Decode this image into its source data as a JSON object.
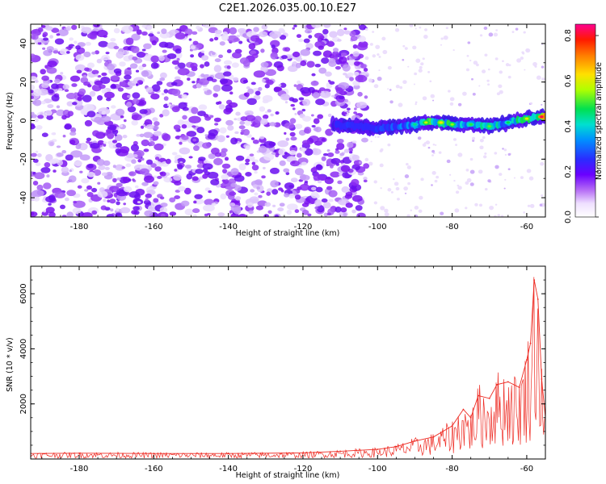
{
  "title": "C2E1.2026.035.00.10.E27",
  "chart_data": [
    {
      "type": "heatmap",
      "xlabel": "Height of straight line (km)",
      "ylabel": "Frequency (Hz)",
      "xlim": [
        -193,
        -55
      ],
      "ylim": [
        -50,
        50
      ],
      "xticks": [
        -180,
        -160,
        -140,
        -120,
        -100,
        -80,
        -60
      ],
      "yticks": [
        -40,
        -20,
        0,
        20,
        40
      ],
      "colorbar": {
        "label": "Normalized spectral amplitude",
        "range": [
          0.0,
          0.85
        ],
        "ticks": [
          "0.0",
          "0.2",
          "0.4",
          "0.6",
          "0.8"
        ],
        "tick_values": [
          0.0,
          0.2,
          0.4,
          0.6,
          0.8
        ]
      },
      "signal_band": {
        "x_range": [
          -112,
          -55
        ],
        "points": [
          {
            "x": -112,
            "y": -2,
            "amp": 0.28
          },
          {
            "x": -105,
            "y": -3,
            "amp": 0.32
          },
          {
            "x": -100,
            "y": -4,
            "amp": 0.33
          },
          {
            "x": -95,
            "y": -3,
            "amp": 0.38
          },
          {
            "x": -90,
            "y": -2,
            "amp": 0.45
          },
          {
            "x": -87,
            "y": -1,
            "amp": 0.58
          },
          {
            "x": -83,
            "y": -1,
            "amp": 0.62
          },
          {
            "x": -80,
            "y": -2,
            "amp": 0.55
          },
          {
            "x": -75,
            "y": -2,
            "amp": 0.5
          },
          {
            "x": -70,
            "y": -3,
            "amp": 0.52
          },
          {
            "x": -65,
            "y": -1,
            "amp": 0.48
          },
          {
            "x": -60,
            "y": 1,
            "amp": 0.6
          },
          {
            "x": -56,
            "y": 2,
            "amp": 0.82
          }
        ]
      },
      "colors": {
        "noise_dark": "#7a10f0",
        "noise_light": "#d6b9fa",
        "low": "#3c1fe0",
        "mid": "#00d8d8",
        "high": "#ff2a00"
      }
    },
    {
      "type": "line",
      "xlabel": "Height of straight line (km)",
      "ylabel": "SNR (10 * v/v)",
      "xlim": [
        -193,
        -55
      ],
      "ylim": [
        0,
        7000
      ],
      "xticks": [
        -180,
        -160,
        -140,
        -120,
        -100,
        -80,
        -60
      ],
      "yticks": [
        2000,
        4000,
        6000
      ],
      "series": [
        {
          "color": "#ee2a22",
          "x": [
            -193,
            -180,
            -160,
            -140,
            -120,
            -110,
            -100,
            -95,
            -90,
            -85,
            -80,
            -77,
            -75,
            -73,
            -70,
            -68,
            -65,
            -62,
            -60,
            -59,
            -58,
            -57,
            -56,
            -55
          ],
          "y": [
            200,
            210,
            200,
            200,
            220,
            280,
            350,
            450,
            650,
            800,
            1200,
            1800,
            1500,
            2300,
            2200,
            2700,
            2800,
            2600,
            3600,
            4200,
            6500,
            5800,
            2900,
            1500
          ]
        }
      ]
    }
  ]
}
